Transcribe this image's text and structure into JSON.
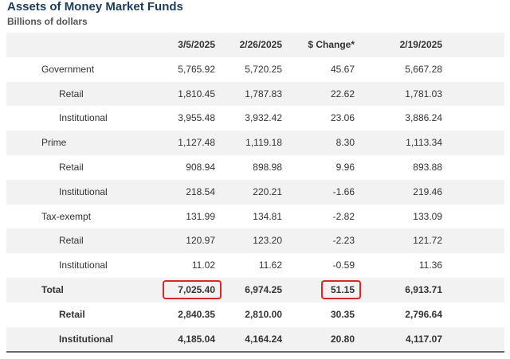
{
  "title": "Assets of Money Market Funds",
  "subtitle": "Billions of dollars",
  "columns": [
    "3/5/2025",
    "2/26/2025",
    "$ Change*",
    "2/19/2025"
  ],
  "rows": [
    {
      "label": "Government",
      "level": 1,
      "values": [
        "5,765.92",
        "5,720.25",
        "45.67",
        "5,667.28"
      ]
    },
    {
      "label": "Retail",
      "level": 2,
      "values": [
        "1,810.45",
        "1,787.83",
        "22.62",
        "1,781.03"
      ]
    },
    {
      "label": "Institutional",
      "level": 2,
      "values": [
        "3,955.48",
        "3,932.42",
        "23.06",
        "3,886.24"
      ]
    },
    {
      "label": "Prime",
      "level": 1,
      "values": [
        "1,127.48",
        "1,119.18",
        "8.30",
        "1,113.34"
      ]
    },
    {
      "label": "Retail",
      "level": 2,
      "values": [
        "908.94",
        "898.98",
        "9.96",
        "893.88"
      ]
    },
    {
      "label": "Institutional",
      "level": 2,
      "values": [
        "218.54",
        "220.21",
        "-1.66",
        "219.46"
      ]
    },
    {
      "label": "Tax-exempt",
      "level": 1,
      "values": [
        "131.99",
        "134.81",
        "-2.82",
        "133.09"
      ]
    },
    {
      "label": "Retail",
      "level": 2,
      "values": [
        "120.97",
        "123.20",
        "-2.23",
        "121.72"
      ]
    },
    {
      "label": "Institutional",
      "level": 2,
      "values": [
        "11.02",
        "11.62",
        "-0.59",
        "11.36"
      ]
    },
    {
      "label": "Total",
      "level": 1,
      "bold": true,
      "values": [
        "7,025.40",
        "6,974.25",
        "51.15",
        "6,913.71"
      ]
    },
    {
      "label": "Retail",
      "level": 2,
      "bold": true,
      "values": [
        "2,840.35",
        "2,810.00",
        "30.35",
        "2,796.64"
      ]
    },
    {
      "label": "Institutional",
      "level": 2,
      "bold": true,
      "values": [
        "4,185.04",
        "4,164.24",
        "20.80",
        "4,117.07"
      ]
    }
  ],
  "highlight_color": "#d42a2a",
  "title_color": "#1b3c5c"
}
